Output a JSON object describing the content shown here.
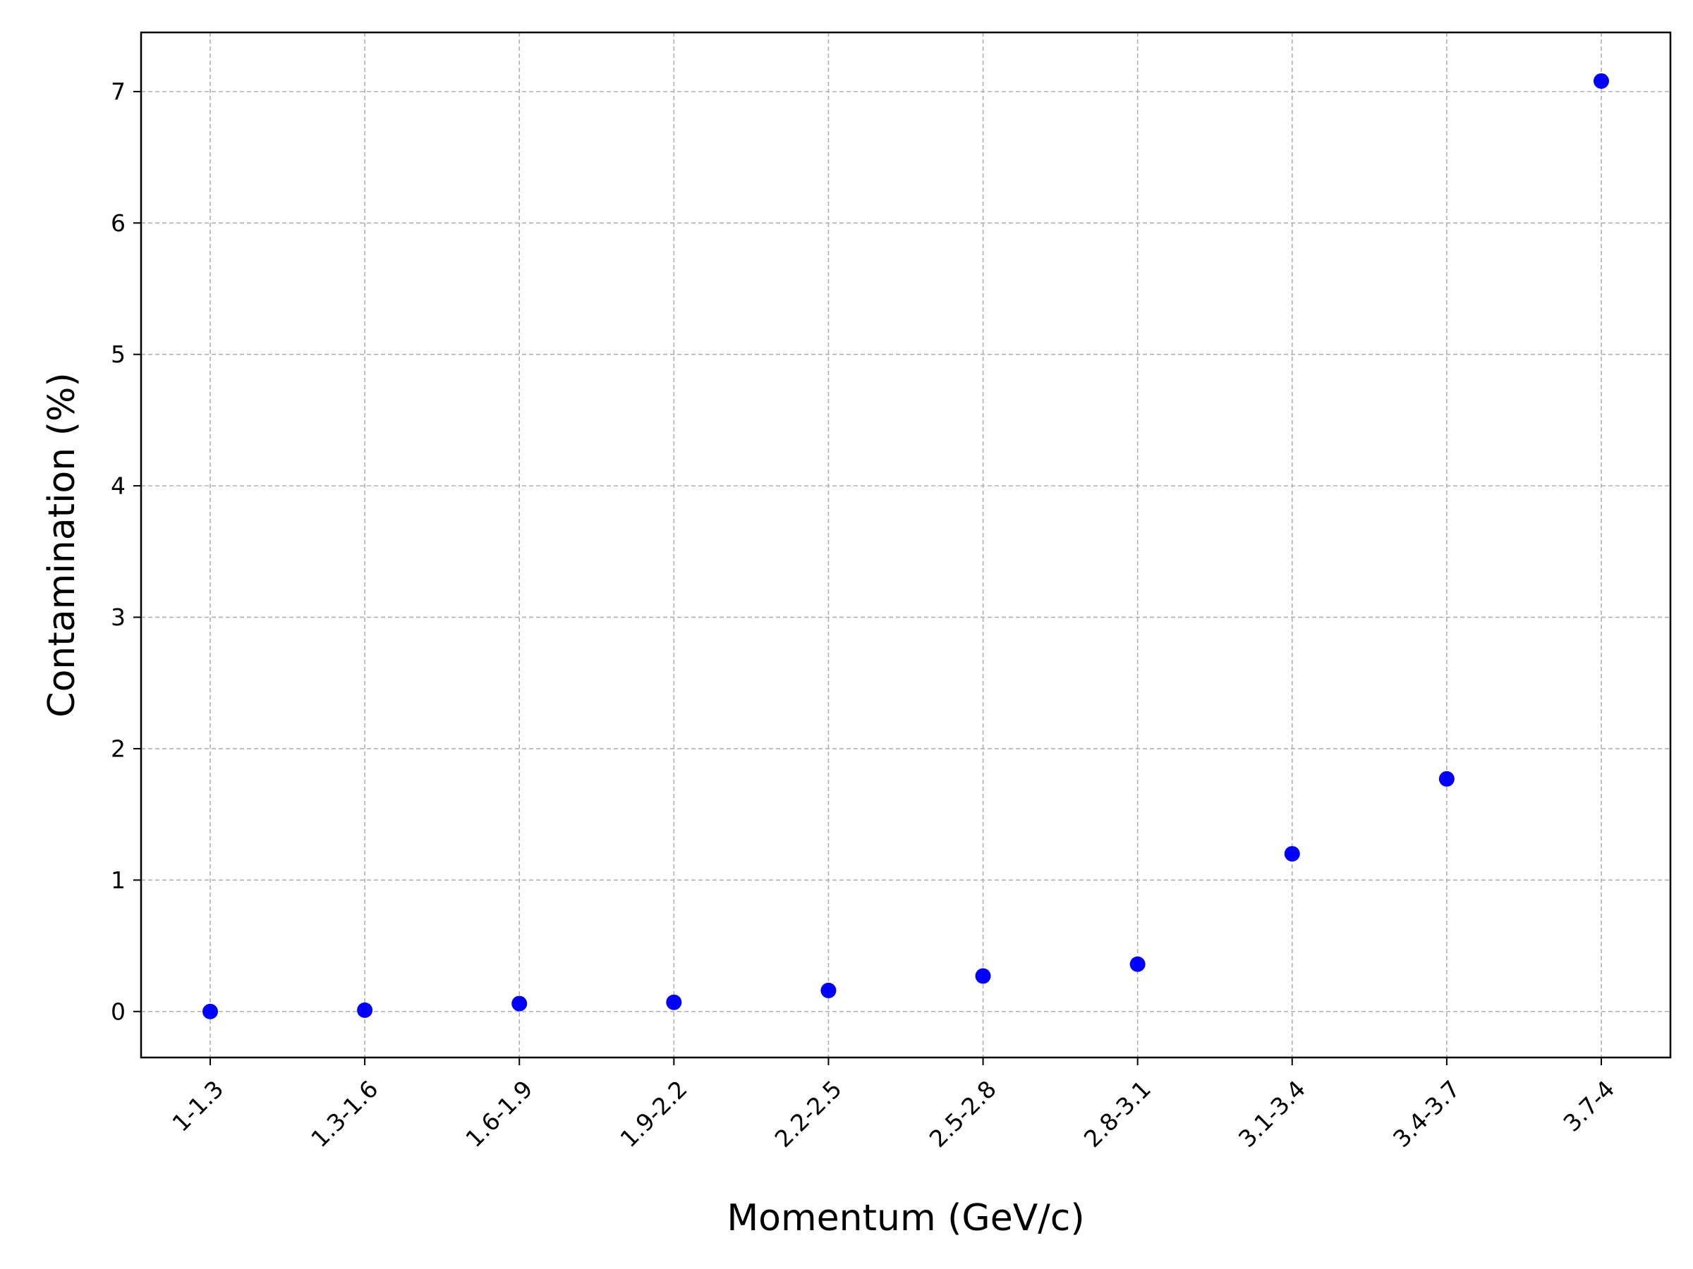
{
  "chart_data": {
    "type": "scatter",
    "title": "",
    "xlabel": "Momentum (GeV/c)",
    "ylabel": "Contamination (%)",
    "categories": [
      "1-1.3",
      "1.3-1.6",
      "1.6-1.9",
      "1.9-2.2",
      "2.2-2.5",
      "2.5-2.8",
      "2.8-3.1",
      "3.1-3.4",
      "3.4-3.7",
      "3.7-4"
    ],
    "series": [
      {
        "values": [
          0.0,
          0.01,
          0.06,
          0.07,
          0.16,
          0.27,
          0.36,
          1.2,
          1.77,
          7.08
        ]
      }
    ],
    "ylim": [
      -0.35,
      7.45
    ],
    "yticks": [
      0,
      1,
      2,
      3,
      4,
      5,
      6,
      7
    ],
    "grid": true,
    "x_tick_rotation": 45,
    "colors": {
      "marker": "#0000ff",
      "grid": "#b0b0b0",
      "axis": "#000000"
    }
  }
}
